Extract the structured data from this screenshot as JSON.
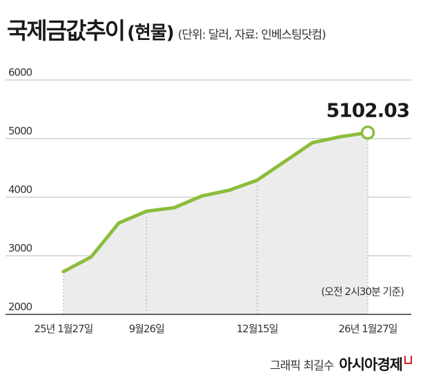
{
  "header": {
    "title": "국제금값추이",
    "subtitle": "(현물)",
    "unit_note": "(단위: 달러, 자료: 인베스팅닷컴)"
  },
  "credit": {
    "graphic": "그래픽 최길수",
    "brand": "아시아경제"
  },
  "colors": {
    "line": "#8cbd3b",
    "area": "#ececec",
    "grid": "#b8b8b8",
    "text": "#333333"
  },
  "chart_data": {
    "type": "area",
    "title": "국제금값추이",
    "ylim": [
      2000,
      6000
    ],
    "yticks": [
      2000,
      3000,
      4000,
      5000,
      6000
    ],
    "xtick_labels": [
      "25년 1월27일",
      "9월26일",
      "12월15일",
      "26년 1월27일"
    ],
    "series": [
      {
        "values": [
          2730,
          2980,
          3560,
          3760,
          3820,
          4020,
          4120,
          4290,
          4610,
          4930,
          5030,
          5102.03
        ]
      }
    ],
    "last_value_label": "5102.03",
    "annotation": "(오전 2시30분 기준)",
    "grid": true
  }
}
